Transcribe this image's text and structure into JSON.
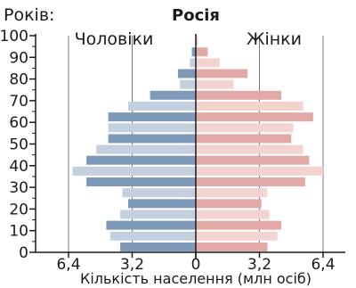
{
  "chart_data": {
    "type": "bar",
    "title": "Росія",
    "ylabel": "Років:",
    "xlabel": "Кількість населення (млн осіб)",
    "left_series_label": "Чоловіки",
    "right_series_label": "Жінки",
    "ylim": [
      0,
      100
    ],
    "xlim": [
      -7,
      7
    ],
    "y_ticks": [
      0,
      10,
      20,
      30,
      40,
      50,
      60,
      70,
      80,
      90,
      100
    ],
    "x_ticks": [
      {
        "value": -6.4,
        "label": "6,4"
      },
      {
        "value": -3.2,
        "label": "3,2"
      },
      {
        "value": 0,
        "label": "0"
      },
      {
        "value": 3.2,
        "label": "3,2"
      },
      {
        "value": 6.4,
        "label": "6,4"
      }
    ],
    "age_groups": [
      0,
      5,
      10,
      15,
      20,
      25,
      30,
      35,
      40,
      45,
      50,
      55,
      60,
      65,
      70,
      75,
      80,
      85,
      90,
      95,
      100
    ],
    "series": [
      {
        "name": "Чоловіки",
        "values": [
          3.8,
          4.3,
          4.5,
          3.8,
          3.4,
          3.7,
          5.5,
          6.2,
          5.5,
          5.0,
          4.4,
          4.4,
          4.4,
          3.4,
          2.3,
          0.8,
          0.9,
          0.3,
          0.2,
          0.0,
          0.0
        ]
      },
      {
        "name": "Жінки",
        "values": [
          3.6,
          4.1,
          4.3,
          3.7,
          3.3,
          3.6,
          5.5,
          6.4,
          5.7,
          5.4,
          4.8,
          4.9,
          5.9,
          5.4,
          4.3,
          1.9,
          2.6,
          1.2,
          0.6,
          0.1,
          0.0
        ]
      }
    ],
    "colors": {
      "male_dark": "#7f99b8",
      "male_light": "#c4d0df",
      "female_dark": "#e2a9a6",
      "female_light": "#f3d3cf",
      "grid": "#7a7a7a",
      "axis": "#1a1a1a"
    },
    "grid": true
  }
}
